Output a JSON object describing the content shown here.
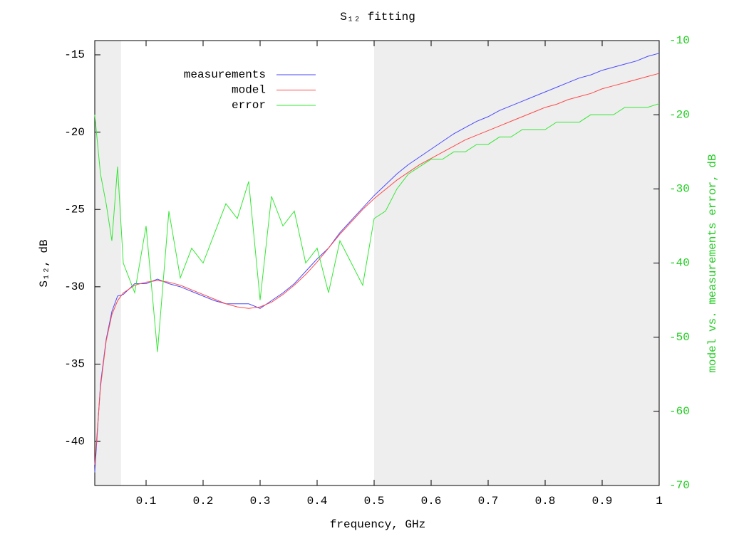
{
  "chart_data": {
    "type": "line",
    "title": "S₁₂ fitting",
    "xlabel": "frequency, GHz",
    "ylabel": "S₁₂, dB",
    "y2label": "model vs. measurements error, dB",
    "x": [
      0.01,
      0.02,
      0.03,
      0.04,
      0.05,
      0.06,
      0.08,
      0.1,
      0.12,
      0.14,
      0.16,
      0.18,
      0.2,
      0.22,
      0.24,
      0.26,
      0.28,
      0.3,
      0.32,
      0.34,
      0.36,
      0.38,
      0.4,
      0.42,
      0.44,
      0.46,
      0.48,
      0.5,
      0.52,
      0.54,
      0.56,
      0.58,
      0.6,
      0.62,
      0.64,
      0.66,
      0.68,
      0.7,
      0.72,
      0.74,
      0.76,
      0.78,
      0.8,
      0.82,
      0.84,
      0.86,
      0.88,
      0.9,
      0.92,
      0.94,
      0.96,
      0.98,
      1.0
    ],
    "series": [
      {
        "name": "measurements",
        "color": "#4a4aff",
        "values": [
          -42.0,
          -36.3,
          -33.4,
          -31.6,
          -30.6,
          -30.5,
          -29.8,
          -29.8,
          -29.5,
          -29.8,
          -30.0,
          -30.3,
          -30.6,
          -30.9,
          -31.1,
          -31.1,
          -31.1,
          -31.4,
          -30.9,
          -30.4,
          -29.8,
          -29.0,
          -28.2,
          -27.5,
          -26.5,
          -25.7,
          -24.9,
          -24.1,
          -23.4,
          -22.7,
          -22.1,
          -21.6,
          -21.1,
          -20.6,
          -20.1,
          -19.7,
          -19.3,
          -19.0,
          -18.6,
          -18.3,
          -18.0,
          -17.7,
          -17.4,
          -17.1,
          -16.8,
          -16.5,
          -16.3,
          -16.0,
          -15.8,
          -15.6,
          -15.4,
          -15.1,
          -14.9
        ]
      },
      {
        "name": "model",
        "color": "#ff4a4a",
        "values": [
          -41.5,
          -36.5,
          -33.5,
          -31.8,
          -30.9,
          -30.4,
          -29.9,
          -29.7,
          -29.6,
          -29.7,
          -29.9,
          -30.2,
          -30.5,
          -30.8,
          -31.1,
          -31.3,
          -31.4,
          -31.3,
          -31.0,
          -30.5,
          -29.9,
          -29.2,
          -28.4,
          -27.5,
          -26.6,
          -25.8,
          -25.0,
          -24.3,
          -23.7,
          -23.1,
          -22.6,
          -22.1,
          -21.7,
          -21.3,
          -20.9,
          -20.5,
          -20.2,
          -19.9,
          -19.6,
          -19.3,
          -19.0,
          -18.7,
          -18.4,
          -18.2,
          -17.9,
          -17.7,
          -17.5,
          -17.2,
          -17.0,
          -16.8,
          -16.6,
          -16.4,
          -16.2
        ]
      },
      {
        "name": "error",
        "color": "#33e833",
        "axis": "y2",
        "values": [
          -20,
          -28,
          -32,
          -37,
          -27,
          -40,
          -44,
          -35,
          -52,
          -33,
          -42,
          -38,
          -40,
          -36,
          -32,
          -34,
          -29,
          -45,
          -31,
          -35,
          -33,
          -40,
          -38,
          -44,
          -37,
          -40,
          -43,
          -34,
          -33,
          -30,
          -28,
          -27,
          -26,
          -26,
          -25,
          -25,
          -24,
          -24,
          -23,
          -23,
          -22,
          -22,
          -22,
          -21,
          -21,
          -21,
          -20,
          -20,
          -20,
          -19,
          -19,
          -19,
          -18.5
        ]
      }
    ],
    "shaded": [
      [
        0.01,
        0.056
      ],
      [
        0.5,
        1
      ]
    ],
    "shade_color": "#eeeeee",
    "xlim": [
      0.01,
      1
    ],
    "xticks": [
      0.1,
      0.2,
      0.3,
      0.4,
      0.5,
      0.6,
      0.7,
      0.8,
      0.9,
      1
    ],
    "ylim": [
      -42.85,
      -14.08
    ],
    "yticks": [
      -40,
      -35,
      -30,
      -25,
      -20,
      -15
    ],
    "y2lim": [
      -70,
      -10
    ],
    "y2ticks": [
      -70,
      -60,
      -50,
      -40,
      -30,
      -20,
      -10
    ],
    "y2color": "#22cc22",
    "legend": "top-left"
  }
}
